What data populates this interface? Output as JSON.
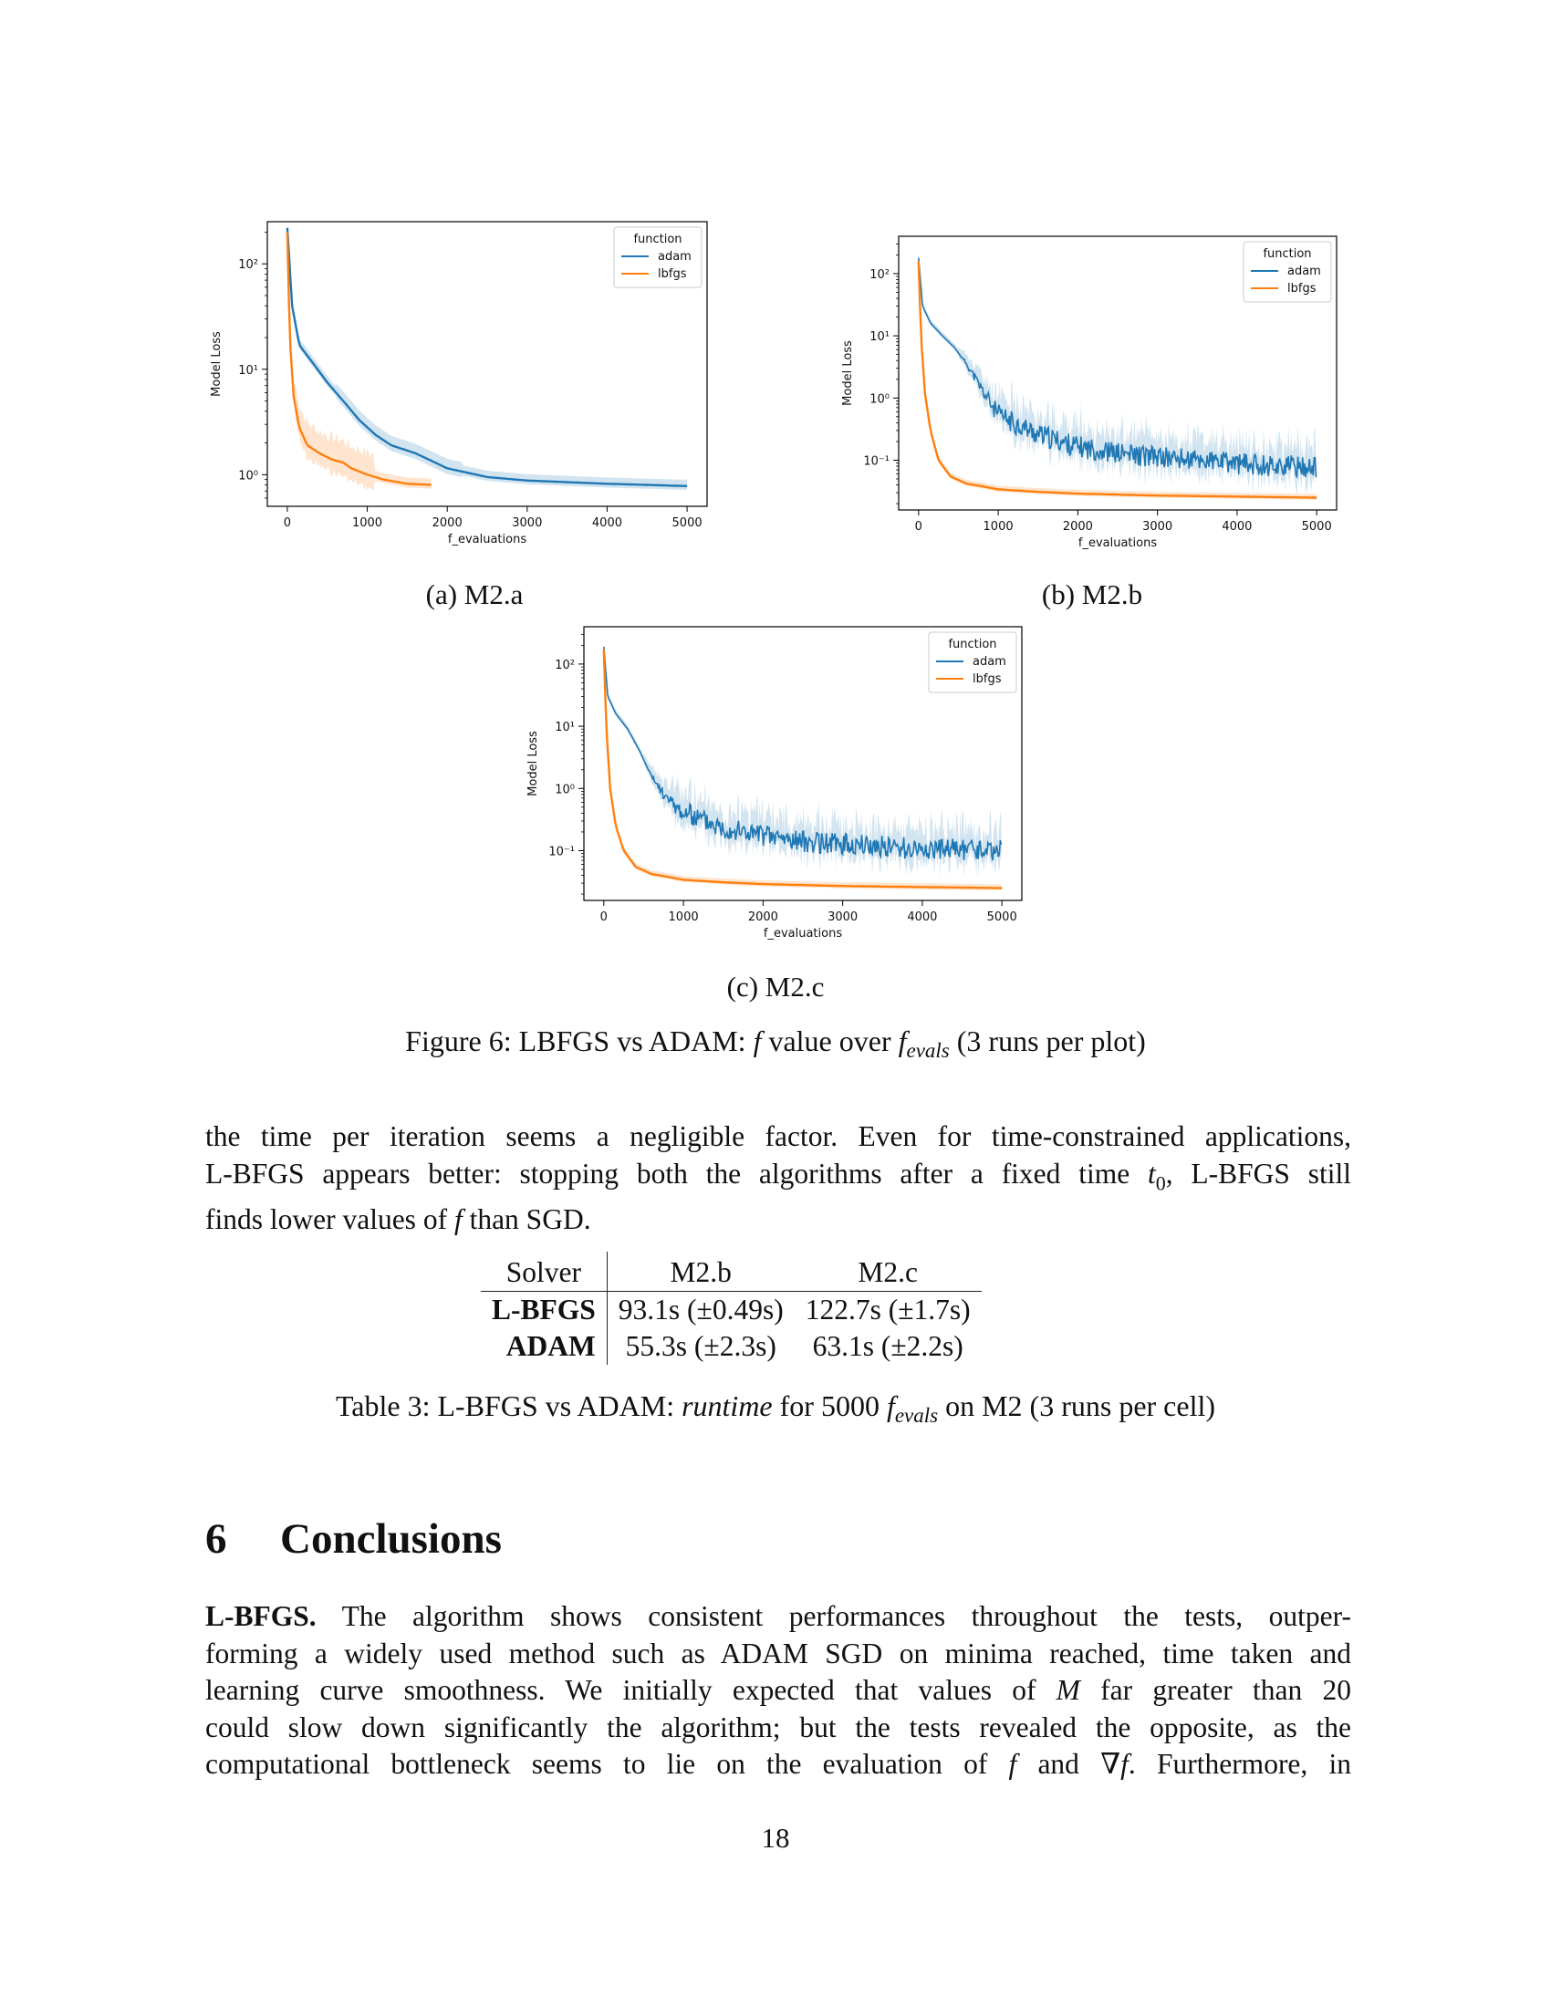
{
  "figure": {
    "caption": "Figure 6: LBFGS vs ADAM: f value over f_evals (3 runs per plot)",
    "caption_parts": {
      "pre": "Figure 6: LBFGS vs ADAM: ",
      "f": "f",
      "mid": " value over ",
      "f_sym": "f",
      "sub": "evals",
      "post": " (3 runs per plot)"
    },
    "subcaptions": [
      "(a) M2.a",
      "(b) M2.b",
      "(c) M2.c"
    ]
  },
  "chart_data": [
    {
      "type": "line",
      "panel": "M2.a",
      "xlabel": "f_evaluations",
      "ylabel": "Model Loss",
      "xlim": [
        -250,
        5250
      ],
      "ylim_log10": [
        -0.3,
        2.4
      ],
      "yscale": "log",
      "xticks": [
        0,
        1000,
        2000,
        3000,
        4000,
        5000
      ],
      "yticks": [
        {
          "value": 1,
          "label": "10⁰"
        },
        {
          "value": 10,
          "label": "10¹"
        },
        {
          "value": 100,
          "label": "10²"
        }
      ],
      "legend": {
        "title": "function",
        "position": "top-right"
      },
      "series": [
        {
          "name": "adam",
          "color": "#1f77b4",
          "x": [
            0,
            60,
            150,
            300,
            500,
            700,
            900,
            1100,
            1300,
            1600,
            2000,
            2500,
            3000,
            4000,
            5000
          ],
          "y": [
            220,
            40,
            17,
            12,
            7.5,
            5,
            3.3,
            2.4,
            1.9,
            1.6,
            1.15,
            0.95,
            0.88,
            0.82,
            0.78
          ]
        },
        {
          "name": "lbfgs",
          "color": "#ff7f0e",
          "x": [
            0,
            30,
            80,
            150,
            250,
            400,
            550,
            700,
            800,
            1000,
            1200,
            1500,
            1800
          ],
          "y": [
            200,
            20,
            5.5,
            2.8,
            1.9,
            1.6,
            1.4,
            1.3,
            1.15,
            1.0,
            0.9,
            0.82,
            0.8
          ]
        }
      ]
    },
    {
      "type": "line",
      "panel": "M2.b",
      "xlabel": "f_evaluations",
      "ylabel": "Model Loss",
      "xlim": [
        -250,
        5250
      ],
      "ylim_log10": [
        -1.8,
        2.6
      ],
      "yscale": "log",
      "xticks": [
        0,
        1000,
        2000,
        3000,
        4000,
        5000
      ],
      "yticks": [
        {
          "value": 0.1,
          "label": "10⁻¹"
        },
        {
          "value": 1,
          "label": "10⁰"
        },
        {
          "value": 10,
          "label": "10¹"
        },
        {
          "value": 100,
          "label": "10²"
        }
      ],
      "legend": {
        "title": "function",
        "position": "top-right"
      },
      "series": [
        {
          "name": "adam",
          "color": "#1f77b4",
          "x": [
            0,
            50,
            150,
            300,
            450,
            600,
            800,
            1000,
            1500,
            2000,
            2500,
            3000,
            3500,
            4000,
            5000
          ],
          "y": [
            180,
            30,
            16,
            10,
            6.5,
            3.5,
            1.2,
            0.45,
            0.22,
            0.14,
            0.11,
            0.095,
            0.085,
            0.075,
            0.065
          ]
        },
        {
          "name": "lbfgs",
          "color": "#ff7f0e",
          "x": [
            0,
            30,
            80,
            150,
            250,
            400,
            600,
            800,
            1000,
            1500,
            2000,
            3000,
            4000,
            5000
          ],
          "y": [
            160,
            10,
            1.2,
            0.3,
            0.1,
            0.055,
            0.042,
            0.038,
            0.034,
            0.031,
            0.029,
            0.027,
            0.026,
            0.025
          ]
        }
      ]
    },
    {
      "type": "line",
      "panel": "M2.c",
      "xlabel": "f_evaluations",
      "ylabel": "Model Loss",
      "xlim": [
        -250,
        5250
      ],
      "ylim_log10": [
        -1.8,
        2.6
      ],
      "yscale": "log",
      "xticks": [
        0,
        1000,
        2000,
        3000,
        4000,
        5000
      ],
      "yticks": [
        {
          "value": 0.1,
          "label": "10⁻¹"
        },
        {
          "value": 1,
          "label": "10⁰"
        },
        {
          "value": 10,
          "label": "10¹"
        },
        {
          "value": 100,
          "label": "10²"
        }
      ],
      "legend": {
        "title": "function",
        "position": "top-right"
      },
      "series": [
        {
          "name": "adam",
          "color": "#1f77b4",
          "x": [
            0,
            50,
            150,
            300,
            450,
            600,
            800,
            1000,
            1500,
            2000,
            2500,
            3000,
            3500,
            4000,
            5000
          ],
          "y": [
            190,
            30,
            16,
            9,
            4,
            1.5,
            0.6,
            0.35,
            0.2,
            0.15,
            0.12,
            0.11,
            0.1,
            0.09,
            0.085
          ]
        },
        {
          "name": "lbfgs",
          "color": "#ff7f0e",
          "x": [
            0,
            30,
            80,
            150,
            250,
            400,
            600,
            800,
            1000,
            1500,
            2000,
            3000,
            4000,
            5000
          ],
          "y": [
            170,
            10,
            1.0,
            0.25,
            0.1,
            0.055,
            0.042,
            0.038,
            0.034,
            0.031,
            0.029,
            0.027,
            0.026,
            0.025
          ]
        }
      ]
    }
  ],
  "paragraph1": {
    "line1": "the time per iteration seems a negligible factor. Even for time-constrained applications,",
    "line2_pre": "L-BFGS appears better: stopping both the algorithms after a fixed time ",
    "line2_t": "t",
    "line2_sub": "0",
    "line2_post": ", L-BFGS still",
    "line3_pre": "finds lower values of ",
    "line3_f": "f",
    "line3_post": " than SGD."
  },
  "table": {
    "headers": [
      "Solver",
      "M2.b",
      "M2.c"
    ],
    "rows": [
      [
        "L-BFGS",
        "93.1s (±0.49s)",
        "122.7s (±1.7s)"
      ],
      [
        "ADAM",
        "55.3s (±2.3s)",
        "63.1s (±2.2s)"
      ]
    ],
    "caption_parts": {
      "pre": "Table 3: L-BFGS vs ADAM: ",
      "runtime": "runtime",
      "mid": " for 5000 ",
      "f": "f",
      "sub": "evals",
      "post": " on M2 (3 runs per cell)"
    }
  },
  "section": {
    "number": "6",
    "title": "Conclusions"
  },
  "paragraph2": {
    "lead": "L-BFGS.",
    "line1": " The algorithm shows consistent performances throughout the tests, outper-",
    "line2": "forming a widely used method such as ADAM SGD on minima reached, time taken and",
    "line3_pre": "learning curve smoothness. We initially expected that values of ",
    "line3_M": "M",
    "line3_post": " far greater than 20",
    "line4": "could slow down significantly the algorithm; but the tests revealed the opposite, as the",
    "line5_pre": "computational bottleneck seems to lie on the evaluation of ",
    "line5_f": "f",
    "line5_mid": " and ∇",
    "line5_f2": "f",
    "line5_post": ". Furthermore, in"
  },
  "page_number": "18"
}
